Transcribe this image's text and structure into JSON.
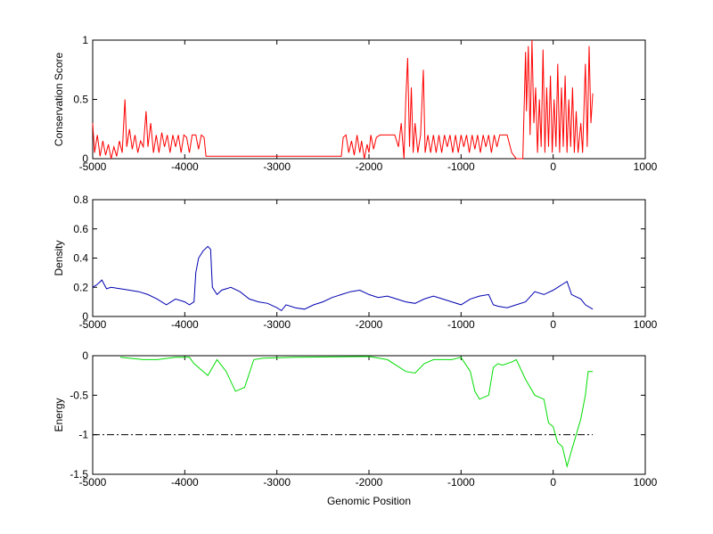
{
  "chart_data": [
    {
      "type": "line",
      "ylabel": "Conservation Score",
      "color": "#ff0000",
      "xlim": [
        -5000,
        1000
      ],
      "xticks": [
        -5000,
        -4000,
        -3000,
        -2000,
        -1000,
        0,
        1000
      ],
      "ylim": [
        0,
        1
      ],
      "yticks": [
        0,
        0.5,
        1
      ],
      "x": [
        -5000,
        -4980,
        -4950,
        -4920,
        -4890,
        -4860,
        -4830,
        -4800,
        -4770,
        -4740,
        -4710,
        -4680,
        -4650,
        -4630,
        -4600,
        -4570,
        -4540,
        -4510,
        -4480,
        -4450,
        -4420,
        -4400,
        -4370,
        -4340,
        -4310,
        -4280,
        -4250,
        -4220,
        -4190,
        -4160,
        -4130,
        -4100,
        -4070,
        -4040,
        -4010,
        -3980,
        -3950,
        -3920,
        -3880,
        -3850,
        -3820,
        -3790,
        -3770,
        -3000,
        -2300,
        -2280,
        -2250,
        -2220,
        -2190,
        -2160,
        -2130,
        -2100,
        -2080,
        -2050,
        -2020,
        -2000,
        -1980,
        -1950,
        -1920,
        -1880,
        -1780,
        -1720,
        -1680,
        -1650,
        -1620,
        -1600,
        -1580,
        -1560,
        -1540,
        -1520,
        -1500,
        -1470,
        -1440,
        -1410,
        -1390,
        -1360,
        -1330,
        -1300,
        -1270,
        -1240,
        -1210,
        -1180,
        -1150,
        -1120,
        -1090,
        -1060,
        -1030,
        -1000,
        -970,
        -940,
        -910,
        -880,
        -850,
        -820,
        -790,
        -760,
        -730,
        -700,
        -670,
        -640,
        -610,
        -580,
        -500,
        -450,
        -400,
        -330,
        -300,
        -290,
        -270,
        -250,
        -230,
        -210,
        -190,
        -170,
        -150,
        -130,
        -110,
        -90,
        -70,
        -50,
        -30,
        -10,
        10,
        30,
        50,
        70,
        90,
        110,
        130,
        150,
        170,
        190,
        210,
        230,
        250,
        270,
        300,
        320,
        350,
        370,
        390,
        410,
        430
      ],
      "values": [
        0.3,
        0.05,
        0.2,
        0.02,
        0.15,
        0.03,
        0.12,
        0,
        0.1,
        0.02,
        0.15,
        0.05,
        0.5,
        0.1,
        0.25,
        0.08,
        0.2,
        0.05,
        0.15,
        0.1,
        0.4,
        0.1,
        0.3,
        0.05,
        0.2,
        0.05,
        0.22,
        0.1,
        0.2,
        0.05,
        0.2,
        0.1,
        0.2,
        0.05,
        0.2,
        0.18,
        0.05,
        0.2,
        0.2,
        0.08,
        0.2,
        0.18,
        0.02,
        0.02,
        0.02,
        0.18,
        0.2,
        0.05,
        0.15,
        0.03,
        0.2,
        0.05,
        0.15,
        0,
        0.12,
        0.05,
        0.2,
        0.08,
        0.18,
        0.2,
        0.2,
        0.2,
        0.1,
        0.3,
        0,
        0.5,
        0.85,
        0.1,
        0.6,
        0.05,
        0.3,
        0.05,
        0.2,
        0.75,
        0.05,
        0.2,
        0.05,
        0.2,
        0.05,
        0.2,
        0.05,
        0.2,
        0.1,
        0.2,
        0.05,
        0.2,
        0.05,
        0.2,
        0.1,
        0.2,
        0.05,
        0.2,
        0.08,
        0.2,
        0.05,
        0.2,
        0.1,
        0.2,
        0.05,
        0.2,
        0.1,
        0.2,
        0.2,
        0.05,
        0,
        0,
        0.9,
        0.4,
        0.95,
        0.2,
        1,
        0.3,
        0.6,
        0.05,
        0.5,
        0.1,
        0.92,
        0.05,
        0.6,
        0.1,
        0.7,
        0.05,
        0.5,
        0.1,
        0.8,
        0.05,
        0.6,
        0.1,
        0.7,
        0.05,
        0.5,
        0.1,
        0.6,
        0.05,
        0.4,
        0.05,
        0.3,
        0.05,
        0.8,
        0.1,
        0.95,
        0.3,
        0.55
      ]
    },
    {
      "type": "line",
      "ylabel": "Density",
      "color": "#0000b0",
      "xlim": [
        -5000,
        1000
      ],
      "xticks": [
        -5000,
        -4000,
        -3000,
        -2000,
        -1000,
        0,
        1000
      ],
      "ylim": [
        0,
        0.8
      ],
      "yticks": [
        0,
        0.2,
        0.4,
        0.6,
        0.8
      ],
      "x": [
        -5000,
        -4950,
        -4900,
        -4850,
        -4800,
        -4700,
        -4600,
        -4500,
        -4400,
        -4300,
        -4200,
        -4100,
        -4000,
        -3950,
        -3900,
        -3880,
        -3850,
        -3800,
        -3750,
        -3720,
        -3700,
        -3650,
        -3600,
        -3500,
        -3400,
        -3300,
        -3200,
        -3100,
        -3000,
        -2950,
        -2900,
        -2800,
        -2700,
        -2600,
        -2500,
        -2400,
        -2300,
        -2200,
        -2100,
        -2000,
        -1900,
        -1800,
        -1700,
        -1600,
        -1500,
        -1400,
        -1300,
        -1200,
        -1100,
        -1000,
        -900,
        -800,
        -700,
        -650,
        -600,
        -500,
        -400,
        -300,
        -200,
        -100,
        0,
        50,
        100,
        150,
        200,
        300,
        350,
        430
      ],
      "values": [
        0.2,
        0.22,
        0.25,
        0.19,
        0.2,
        0.19,
        0.18,
        0.17,
        0.15,
        0.12,
        0.08,
        0.12,
        0.1,
        0.08,
        0.1,
        0.3,
        0.4,
        0.45,
        0.48,
        0.46,
        0.2,
        0.15,
        0.18,
        0.2,
        0.17,
        0.12,
        0.1,
        0.09,
        0.06,
        0.04,
        0.08,
        0.06,
        0.05,
        0.08,
        0.1,
        0.13,
        0.15,
        0.17,
        0.18,
        0.15,
        0.13,
        0.14,
        0.12,
        0.1,
        0.09,
        0.12,
        0.14,
        0.12,
        0.1,
        0.08,
        0.12,
        0.14,
        0.15,
        0.08,
        0.07,
        0.06,
        0.08,
        0.1,
        0.17,
        0.15,
        0.18,
        0.2,
        0.22,
        0.24,
        0.15,
        0.12,
        0.08,
        0.05
      ]
    },
    {
      "type": "line",
      "ylabel": "Energy",
      "xlabel": "Genomic Position",
      "color": "#00dd00",
      "xlim": [
        -5000,
        1000
      ],
      "xticks": [
        -5000,
        -4000,
        -3000,
        -2000,
        -1000,
        0,
        1000
      ],
      "ylim": [
        -1.5,
        0
      ],
      "yticks": [
        -1.5,
        -1,
        -0.5,
        0
      ],
      "x": [
        -4700,
        -4450,
        -4300,
        -4100,
        -3950,
        -3900,
        -3800,
        -3750,
        -3650,
        -3550,
        -3450,
        -3350,
        -3250,
        -3150,
        -2800,
        -2000,
        -1800,
        -1600,
        -1500,
        -1400,
        -1300,
        -1100,
        -1000,
        -900,
        -850,
        -800,
        -700,
        -650,
        -600,
        -550,
        -450,
        -400,
        -300,
        -200,
        -100,
        -50,
        0,
        50,
        100,
        150,
        200,
        250,
        300,
        350,
        380,
        430
      ],
      "values": [
        -0.02,
        -0.05,
        -0.05,
        -0.02,
        -0.02,
        -0.1,
        -0.2,
        -0.25,
        -0.05,
        -0.2,
        -0.45,
        -0.4,
        -0.05,
        -0.03,
        -0.02,
        -0.01,
        -0.05,
        -0.2,
        -0.22,
        -0.1,
        -0.05,
        -0.05,
        -0.02,
        -0.2,
        -0.45,
        -0.55,
        -0.5,
        -0.15,
        -0.1,
        -0.12,
        -0.08,
        -0.05,
        -0.3,
        -0.5,
        -0.55,
        -0.85,
        -0.9,
        -1.1,
        -1.15,
        -1.4,
        -1.2,
        -1,
        -0.8,
        -0.5,
        -0.2,
        -0.2
      ],
      "hline": {
        "value": -1,
        "x": [
          -5000,
          430
        ],
        "color": "#000000",
        "style": "dashdot"
      }
    }
  ]
}
